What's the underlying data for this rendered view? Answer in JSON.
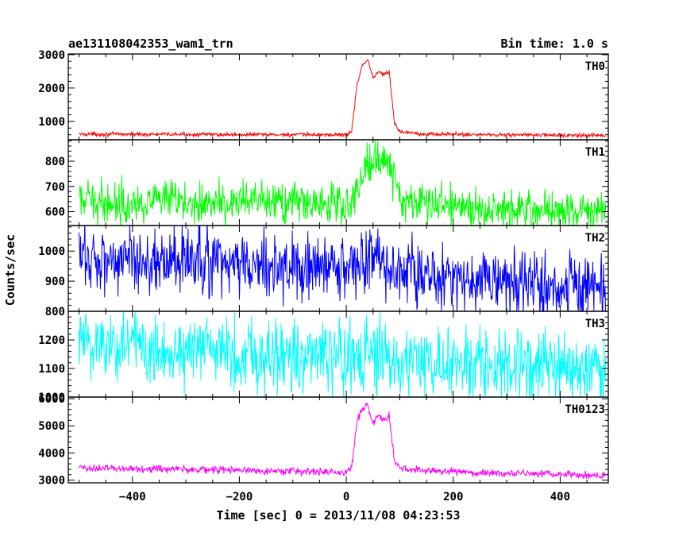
{
  "header": {
    "title": "ae131108042353_wam1_trn",
    "bin_time": "Bin time: 1.0 s"
  },
  "chart_data": {
    "type": "line",
    "xlabel": "Time [sec] 0 = 2013/11/08 04:23:53",
    "ylabel": "Counts/sec",
    "xlim": [
      -520,
      490
    ],
    "xticks": [
      -400,
      -200,
      0,
      200,
      400
    ],
    "data_x_range": [
      -500,
      485
    ],
    "panels": [
      {
        "name": "TH0",
        "color": "#ff0000",
        "ylim": [
          450,
          3020
        ],
        "yticks": [
          1000,
          2000,
          3000
        ],
        "profile": {
          "x": [
            -500,
            -300,
            -100,
            0,
            10,
            20,
            30,
            40,
            50,
            60,
            70,
            80,
            90,
            100,
            150,
            300,
            485
          ],
          "y": [
            620,
            610,
            600,
            600,
            700,
            2100,
            2700,
            2850,
            2300,
            2500,
            2400,
            2500,
            950,
            700,
            620,
            600,
            570
          ]
        },
        "noise": 30
      },
      {
        "name": "TH1",
        "color": "#00ff00",
        "ylim": [
          545,
          885
        ],
        "yticks": [
          600,
          700,
          800
        ],
        "profile": {
          "x": [
            -500,
            -300,
            -100,
            0,
            20,
            40,
            60,
            80,
            100,
            200,
            485
          ],
          "y": [
            640,
            638,
            635,
            630,
            680,
            790,
            815,
            800,
            650,
            620,
            600
          ]
        },
        "noise": 40
      },
      {
        "name": "TH2",
        "color": "#0000ff",
        "ylim": [
          800,
          1085
        ],
        "yticks": [
          800,
          900,
          1000
        ],
        "profile": {
          "x": [
            -500,
            -300,
            -100,
            0,
            30,
            60,
            80,
            100,
            300,
            485
          ],
          "y": [
            980,
            965,
            945,
            940,
            960,
            985,
            935,
            930,
            895,
            875
          ]
        },
        "noise": 55
      },
      {
        "name": "TH3",
        "color": "#00ffff",
        "ylim": [
          1000,
          1300
        ],
        "yticks": [
          1000,
          1100,
          1200
        ],
        "profile": {
          "x": [
            -500,
            -300,
            -100,
            100,
            300,
            485
          ],
          "y": [
            1195,
            1165,
            1145,
            1125,
            1105,
            1095
          ]
        },
        "noise": 65
      },
      {
        "name": "TH0123",
        "color": "#ff00ff",
        "ylim": [
          2900,
          6060
        ],
        "yticks": [
          3000,
          4000,
          5000,
          6000
        ],
        "profile": {
          "x": [
            -500,
            -300,
            -100,
            0,
            10,
            20,
            30,
            40,
            50,
            60,
            70,
            80,
            90,
            100,
            150,
            300,
            485
          ],
          "y": [
            3450,
            3400,
            3330,
            3280,
            3500,
            5200,
            5600,
            5750,
            5100,
            5400,
            5200,
            5350,
            3700,
            3450,
            3350,
            3250,
            3170
          ]
        },
        "noise": 70
      }
    ]
  }
}
